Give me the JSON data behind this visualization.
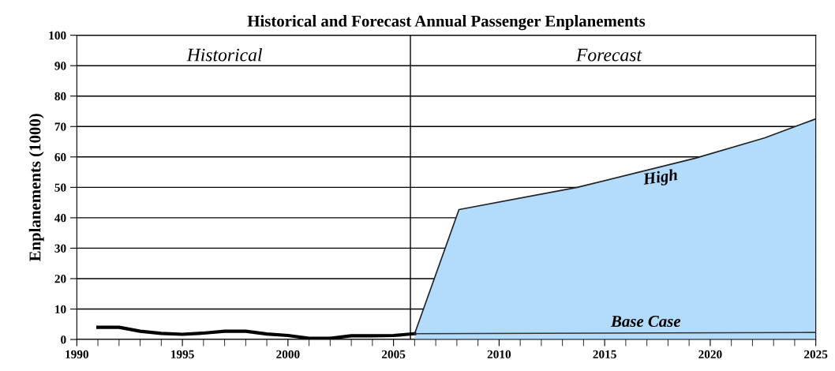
{
  "chart_data": {
    "type": "line",
    "title": "Historical and Forecast Annual Passenger Enplanements",
    "ylabel": "Enplanements (1000)",
    "annotations": [
      "Historical",
      "Forecast"
    ],
    "xlim": [
      1990,
      2025
    ],
    "xticks": [
      1990,
      1995,
      2000,
      2005,
      2010,
      2015,
      2020,
      2025
    ],
    "ylim": [
      0,
      100
    ],
    "yticks": [
      0,
      10,
      20,
      30,
      40,
      50,
      60,
      70,
      80,
      90,
      100
    ],
    "grid": "y",
    "legend": false,
    "ref_lines": [
      {
        "axis": "x",
        "value": 2005.8,
        "color": "#000000"
      }
    ],
    "series": [
      {
        "color": "#000000",
        "x": [
          1991,
          1992,
          1993,
          1994,
          1995,
          1996,
          1997,
          1998,
          1999,
          2000,
          2001,
          2002,
          2003,
          2004,
          2005,
          2006
        ],
        "values": [
          4,
          4,
          2.7,
          2,
          1.7,
          2.1,
          2.7,
          2.7,
          1.8,
          1.3,
          0.4,
          0.4,
          1.2,
          1.2,
          1.3,
          1.9
        ]
      },
      {
        "type": "area",
        "name": "High",
        "color": "#b3dbfc",
        "x": [
          2006,
          2008.1,
          2013.7,
          2019.3,
          2022.6,
          2025
        ],
        "values": [
          1.9,
          42.7,
          50,
          59.6,
          66.3,
          72.5
        ]
      },
      {
        "type": "line",
        "name": "Base Case",
        "color": "#333333",
        "x": [
          2006,
          2025
        ],
        "values": [
          1.9,
          2.3
        ]
      }
    ]
  }
}
